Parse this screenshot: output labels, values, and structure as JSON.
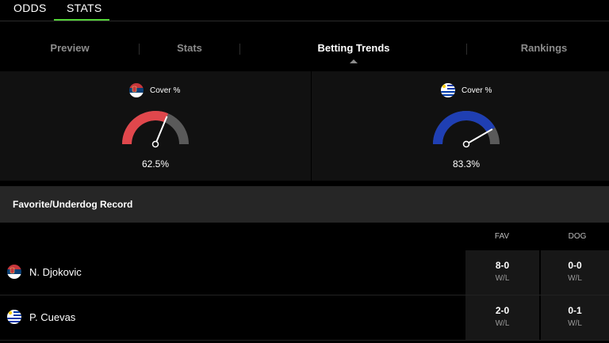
{
  "top_tabs": {
    "odds": "ODDS",
    "stats": "STATS"
  },
  "sub_tabs": [
    "Preview",
    "Stats",
    "Betting Trends",
    "Rankings"
  ],
  "gauges": [
    {
      "label": "Cover %",
      "value": 62.5,
      "value_text": "62.5%",
      "color": "#e0474c",
      "flag": "serbia"
    },
    {
      "label": "Cover %",
      "value": 83.3,
      "value_text": "83.3%",
      "color": "#1f3fb3",
      "flag": "uruguay"
    }
  ],
  "record": {
    "title": "Favorite/Underdog Record",
    "columns": [
      "FAV",
      "DOG"
    ],
    "rows": [
      {
        "player": "N. Djokovic",
        "flag": "serbia",
        "fav": "8-0",
        "fav_sub": "W/L",
        "dog": "0-0",
        "dog_sub": "W/L"
      },
      {
        "player": "P. Cuevas",
        "flag": "uruguay",
        "fav": "2-0",
        "fav_sub": "W/L",
        "dog": "0-1",
        "dog_sub": "W/L"
      }
    ]
  },
  "colors": {
    "accent": "#53d337",
    "gauge_track": "#5a5a5a"
  }
}
